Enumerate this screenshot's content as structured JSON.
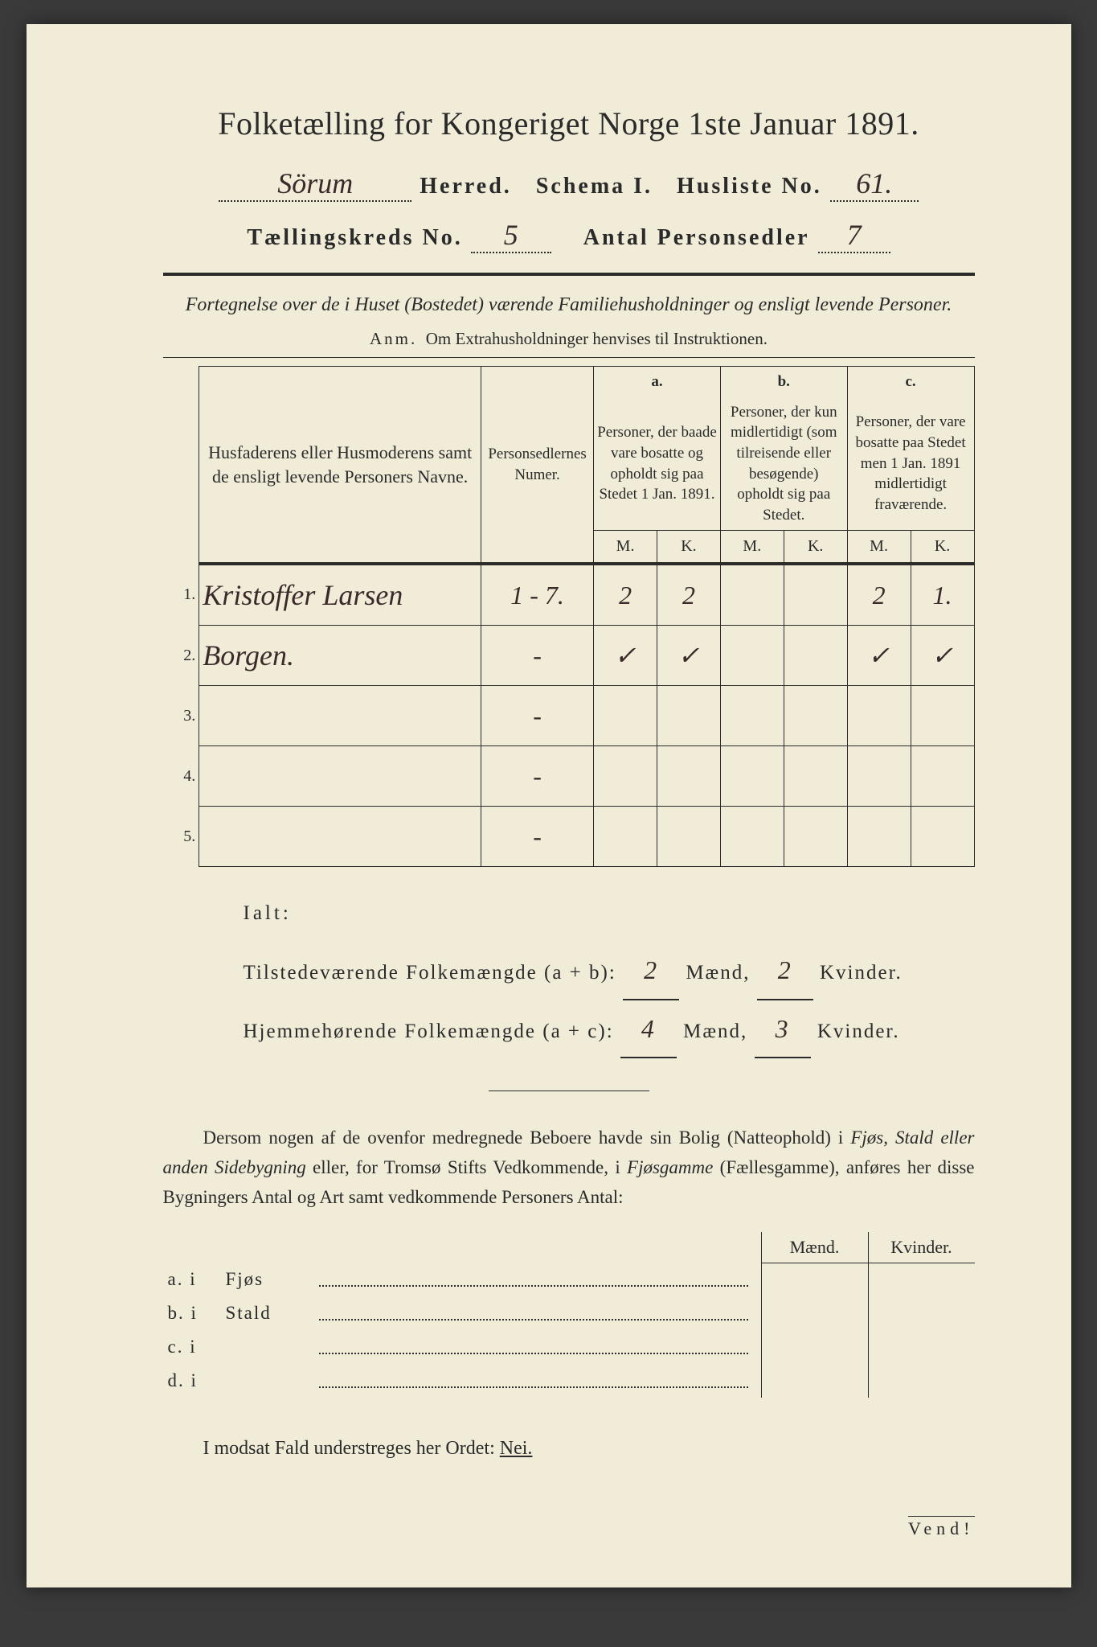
{
  "header": {
    "title": "Folketælling for Kongeriget Norge 1ste Januar 1891.",
    "herred_value": "Sörum",
    "herred_label": "Herred.",
    "schema_label": "Schema I.",
    "husliste_label": "Husliste No.",
    "husliste_value": "61.",
    "kreds_label": "Tællingskreds No.",
    "kreds_value": "5",
    "antal_label": "Antal Personsedler",
    "antal_value": "7"
  },
  "subtitle": "Fortegnelse over de i Huset (Bostedet) værende Familiehusholdninger og ensligt levende Personer.",
  "anm_label": "Anm.",
  "anm_text": "Om Extrahusholdninger henvises til Instruktionen.",
  "table": {
    "col_name": "Husfaderens eller Husmoderens samt de ensligt levende Personers Navne.",
    "col_num": "Personsedlernes Numer.",
    "col_a_label": "a.",
    "col_a": "Personer, der baade vare bosatte og opholdt sig paa Stedet 1 Jan. 1891.",
    "col_b_label": "b.",
    "col_b": "Personer, der kun midlertidigt (som tilreisende eller besøgende) opholdt sig paa Stedet.",
    "col_c_label": "c.",
    "col_c": "Personer, der vare bosatte paa Stedet men 1 Jan. 1891 midlertidigt fraværende.",
    "mk_m": "M.",
    "mk_k": "K.",
    "rows": [
      {
        "n": "1.",
        "name": "Kristoffer Larsen",
        "num": "1 - 7.",
        "am": "2",
        "ak": "2",
        "bm": "",
        "bk": "",
        "cm": "2",
        "ck": "1."
      },
      {
        "n": "2.",
        "name": "Borgen.",
        "num": "-",
        "am": "✓",
        "ak": "✓",
        "bm": "",
        "bk": "",
        "cm": "✓",
        "ck": "✓"
      },
      {
        "n": "3.",
        "name": "",
        "num": "-",
        "am": "",
        "ak": "",
        "bm": "",
        "bk": "",
        "cm": "",
        "ck": ""
      },
      {
        "n": "4.",
        "name": "",
        "num": "-",
        "am": "",
        "ak": "",
        "bm": "",
        "bk": "",
        "cm": "",
        "ck": ""
      },
      {
        "n": "5.",
        "name": "",
        "num": "-",
        "am": "",
        "ak": "",
        "bm": "",
        "bk": "",
        "cm": "",
        "ck": ""
      }
    ]
  },
  "totals": {
    "ialt": "Ialt:",
    "line1_label": "Tilstedeværende Folkemængde (a + b):",
    "line1_m": "2",
    "line1_k": "2",
    "line2_label": "Hjemmehørende Folkemængde (a + c):",
    "line2_m": "4",
    "line2_k": "3",
    "maend": "Mænd,",
    "kvinder": "Kvinder."
  },
  "paragraph": "Dersom nogen af de ovenfor medregnede Beboere havde sin Bolig (Natteophold) i Fjøs, Stald eller anden Sidebygning eller, for Tromsø Stifts Vedkommende, i Fjøsgamme (Fællesgamme), anføres her disse Bygningers Antal og Art samt vedkommende Personers Antal:",
  "lower": {
    "maend": "Mænd.",
    "kvinder": "Kvinder.",
    "rows": [
      {
        "lab": "a.  i",
        "kind": "Fjøs"
      },
      {
        "lab": "b.  i",
        "kind": "Stald"
      },
      {
        "lab": "c.  i",
        "kind": ""
      },
      {
        "lab": "d.  i",
        "kind": ""
      }
    ]
  },
  "nei_line": "I modsat Fald understreges her Ordet:",
  "nei": "Nei.",
  "vend": "Vend!"
}
